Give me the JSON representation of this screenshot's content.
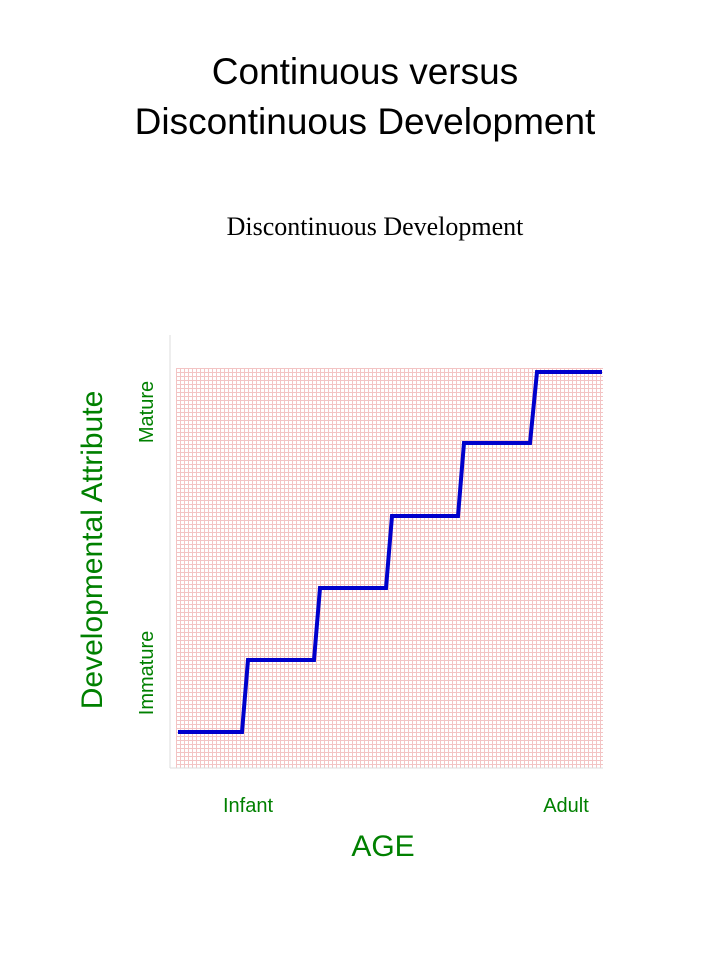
{
  "slide": {
    "title": [
      "Continuous versus",
      "Discontinuous Development"
    ],
    "subtitle": "Discontinuous Development",
    "diagram": {
      "y_axis_title": "Developmental Attribute",
      "y_high_label": "Mature",
      "y_low_label": "Immature",
      "x_low_label": "Infant",
      "x_high_label": "Adult",
      "x_axis_title": "AGE"
    }
  }
}
